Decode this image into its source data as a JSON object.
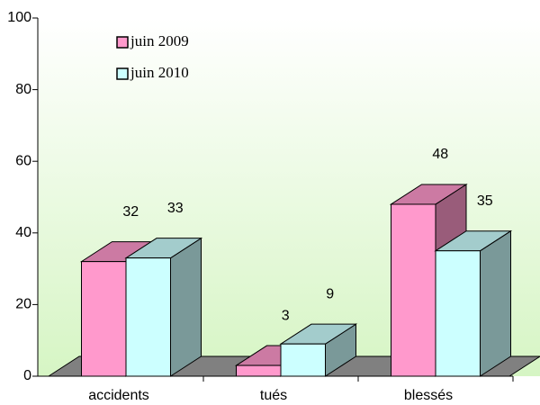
{
  "chart_data": {
    "type": "bar",
    "categories": [
      "accidents",
      "tués",
      "blessés"
    ],
    "series": [
      {
        "name": "juin 2009",
        "color": "#ff99cc",
        "values": [
          32,
          3,
          48
        ]
      },
      {
        "name": "juin 2010",
        "color": "#ccffff",
        "values": [
          33,
          9,
          35
        ]
      }
    ],
    "ylim": [
      0,
      100
    ],
    "yticks": [
      0,
      20,
      40,
      60,
      80,
      100
    ]
  }
}
